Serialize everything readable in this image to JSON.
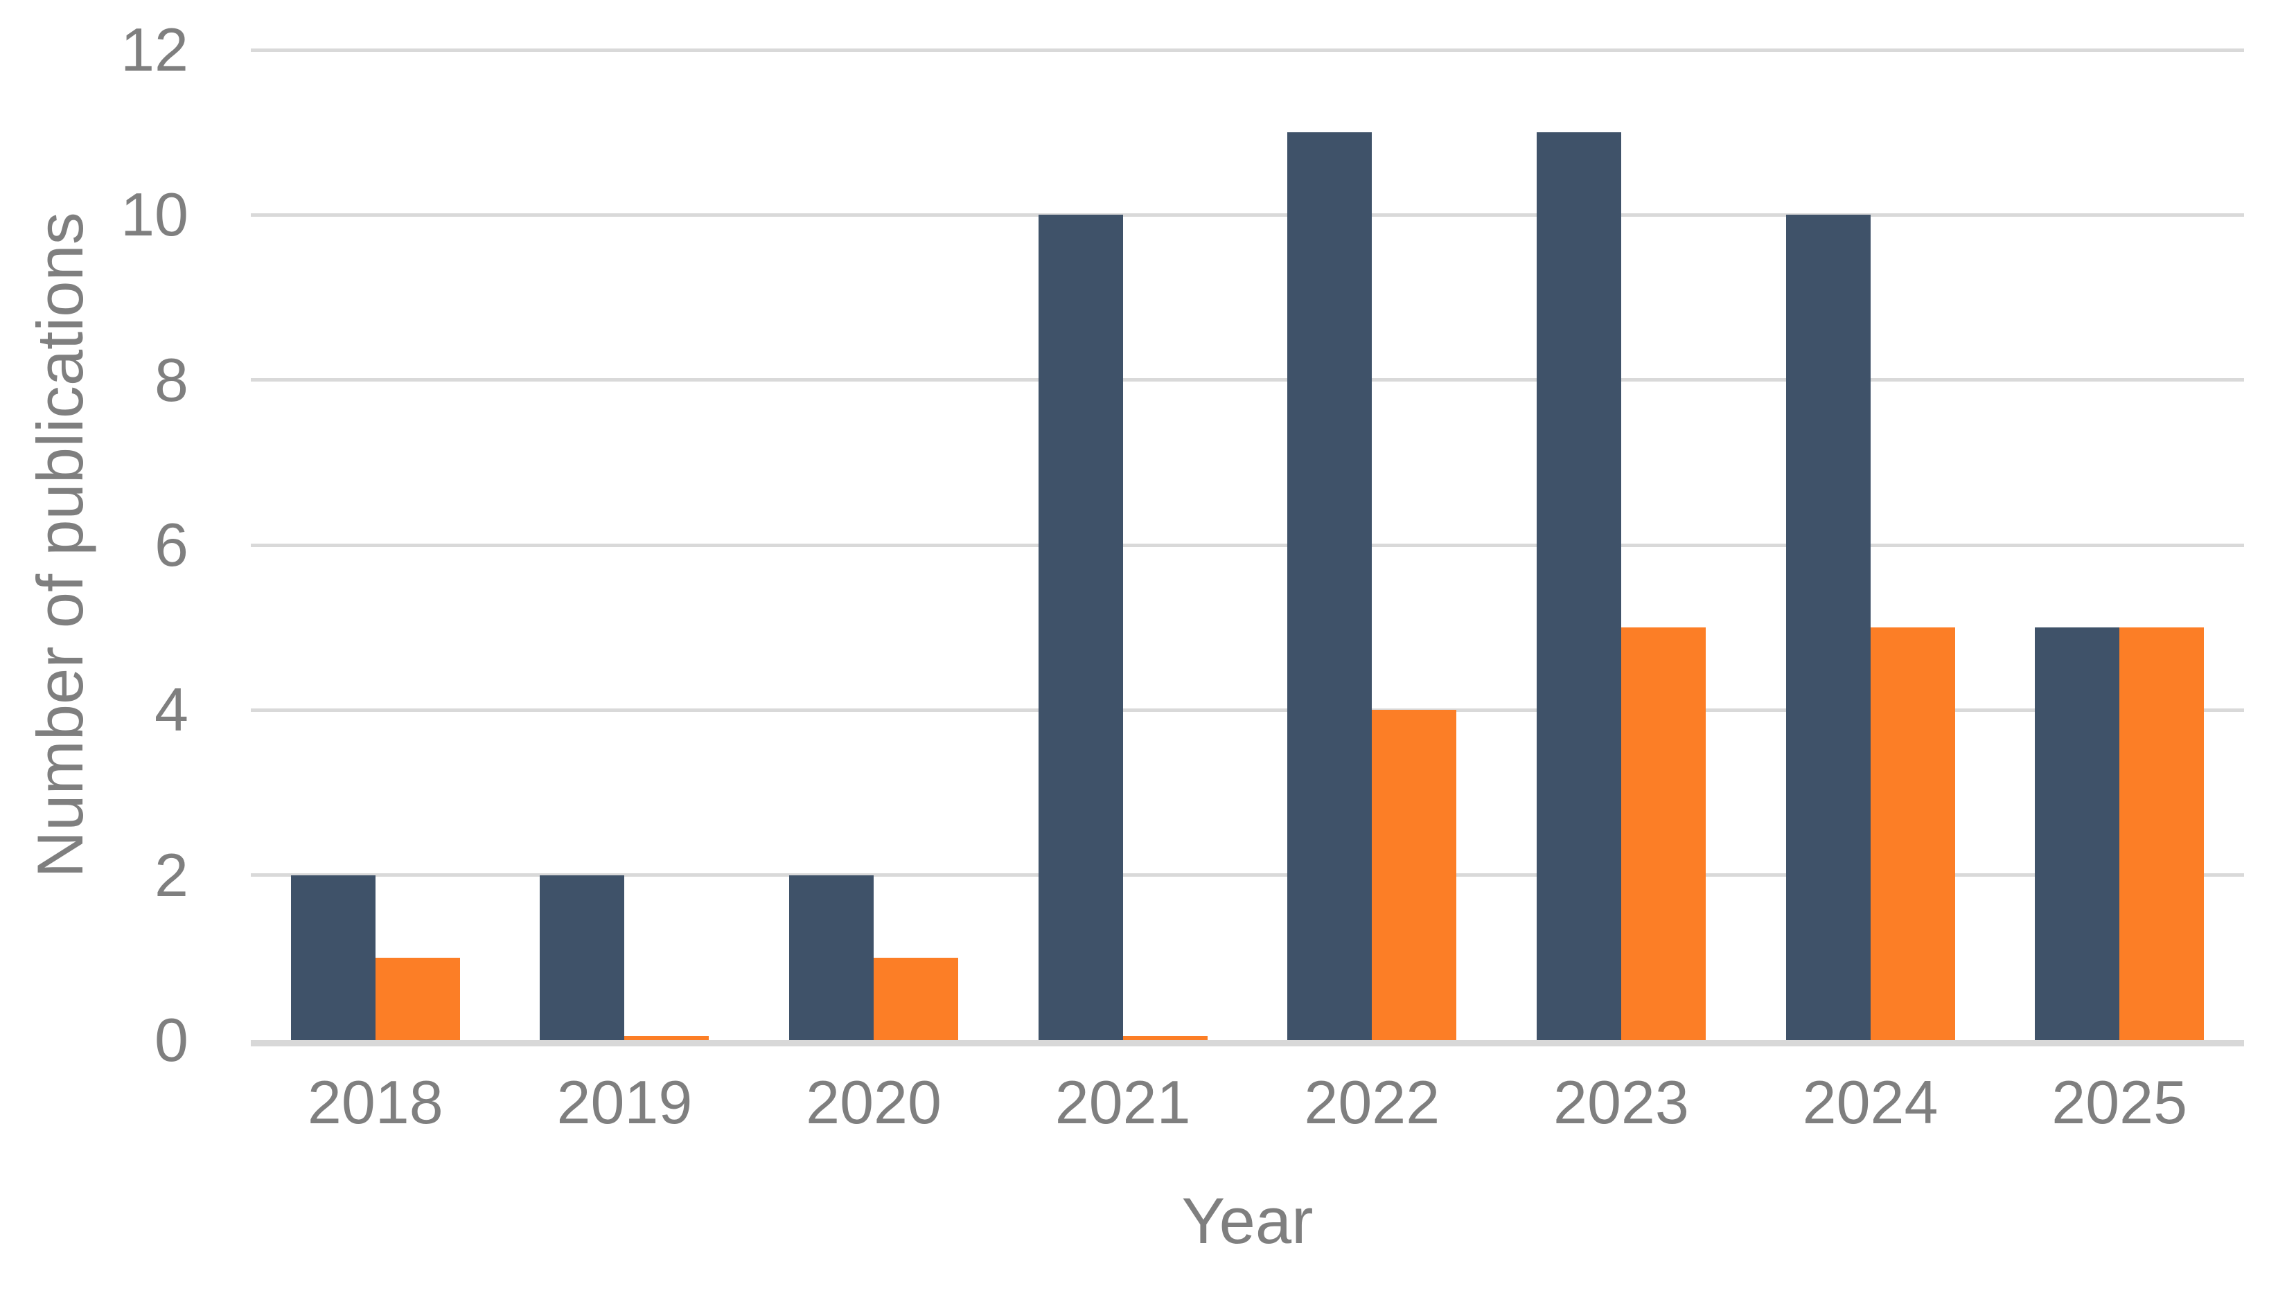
{
  "chart_data": {
    "type": "bar",
    "title": "",
    "categories": [
      "2018",
      "2019",
      "2020",
      "2021",
      "2022",
      "2023",
      "2024",
      "2025"
    ],
    "series": [
      {
        "name": "dark_blue",
        "color": "#3F5269",
        "values": [
          2,
          2,
          2,
          10,
          11,
          11,
          10,
          5
        ]
      },
      {
        "name": "orange",
        "color": "#FC7E26",
        "values": [
          1,
          0.05,
          1,
          0.05,
          4,
          5,
          5,
          5
        ]
      }
    ],
    "xlabel": "Year",
    "ylabel": "Number of publications",
    "ylim": [
      0,
      12
    ],
    "yticks": [
      0,
      2,
      4,
      6,
      8,
      10,
      12
    ],
    "grid": "horizontal",
    "legend": "none",
    "colors": {
      "tick_label": "#7F7F7F",
      "axis_title": "#7F7F7F",
      "gridline": "#D9D9D9",
      "axis_line": "#D8D8D8",
      "background": "#FFFFFF"
    }
  }
}
